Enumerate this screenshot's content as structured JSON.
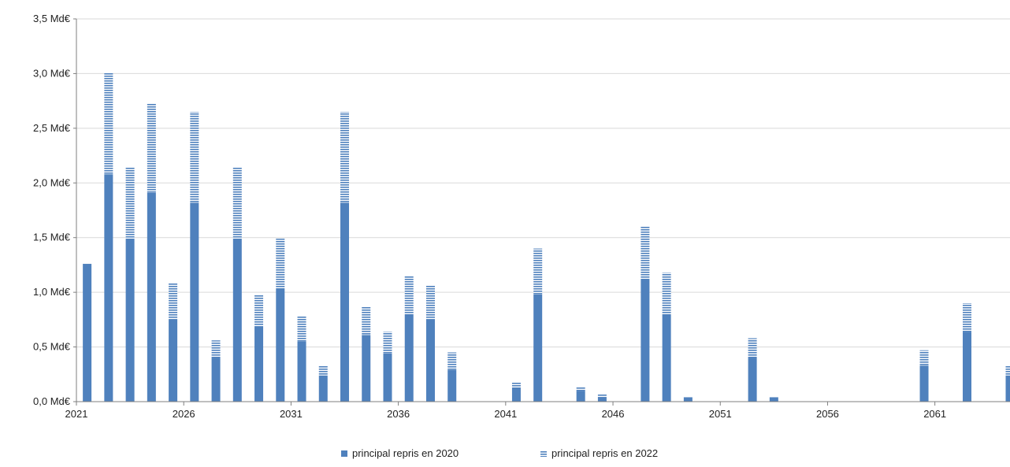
{
  "chart_data": {
    "type": "bar",
    "stacked": true,
    "title": "",
    "xlabel": "",
    "ylabel": "",
    "x": [
      2021,
      2022,
      2023,
      2024,
      2025,
      2026,
      2027,
      2028,
      2029,
      2030,
      2031,
      2032,
      2033,
      2034,
      2035,
      2036,
      2037,
      2038,
      2039,
      2040,
      2041,
      2042,
      2043,
      2044,
      2045,
      2046,
      2047,
      2048,
      2049,
      2050,
      2051,
      2052,
      2053,
      2054,
      2055,
      2056,
      2057,
      2058,
      2059,
      2060,
      2061,
      2062,
      2063,
      2064
    ],
    "x_tick_labels": [
      "2021",
      "2026",
      "2031",
      "2036",
      "2041",
      "2046",
      "2051",
      "2056",
      "2061"
    ],
    "y_tick_labels": [
      "0,0 Md€",
      "0,5 Md€",
      "1,0 Md€",
      "1,5 Md€",
      "2,0 Md€",
      "2,5 Md€",
      "3,0 Md€",
      "3,5 Md€"
    ],
    "ylim": [
      0,
      3.5
    ],
    "y_unit": "Md€",
    "grid": true,
    "legend_position": "bottom",
    "series": [
      {
        "name": "principal repris en 2020",
        "color": "#4f81bd",
        "pattern": "solid",
        "values": [
          1.26,
          2.08,
          1.48,
          1.91,
          0.75,
          1.82,
          0.4,
          1.48,
          0.69,
          1.03,
          0.55,
          0.24,
          1.82,
          0.61,
          0.44,
          0.8,
          0.75,
          0.29,
          0,
          0,
          0.13,
          0.98,
          0,
          0.1,
          0.04,
          0,
          1.12,
          0.8,
          0.04,
          0,
          0,
          0.4,
          0.04,
          0,
          0,
          0,
          0,
          0,
          0,
          0.33,
          0,
          0.64,
          0,
          0.24
        ]
      },
      {
        "name": "principal repris en 2022",
        "color": "#4f81bd",
        "pattern": "horizontal-stripes",
        "values": [
          0,
          0.93,
          0.66,
          0.82,
          0.34,
          0.83,
          0.16,
          0.66,
          0.29,
          0.46,
          0.23,
          0.09,
          0.83,
          0.26,
          0.2,
          0.35,
          0.31,
          0.16,
          0,
          0,
          0.05,
          0.42,
          0,
          0.03,
          0.03,
          0,
          0.48,
          0.38,
          0,
          0,
          0,
          0.18,
          0,
          0,
          0,
          0,
          0,
          0,
          0,
          0.14,
          0,
          0.26,
          0,
          0.09
        ]
      }
    ]
  }
}
